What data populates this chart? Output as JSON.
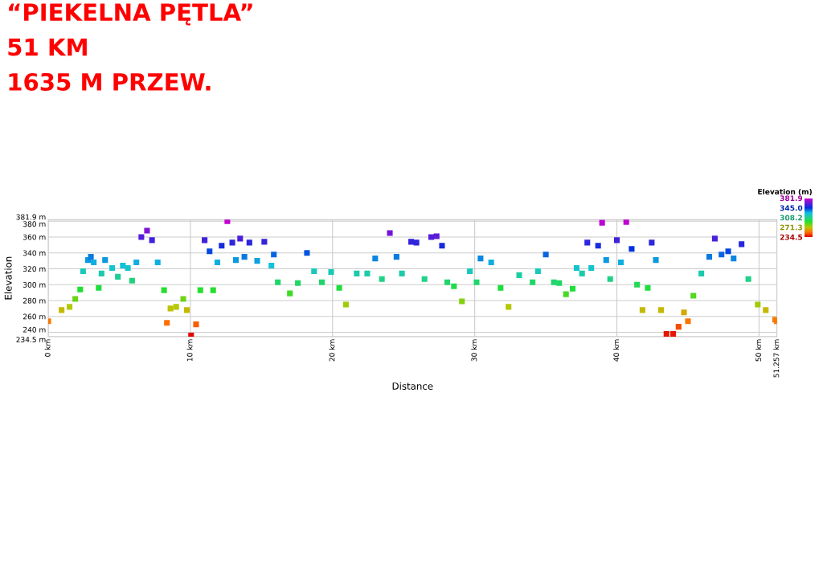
{
  "chart_data": {
    "type": "scatter",
    "title": "“PIEKELNA PĘTLA”",
    "subtitle": "51 KM",
    "annotations": [
      "1635 M PRZEW."
    ],
    "xlabel": "Distance",
    "ylabel": "Elevation",
    "clabel": "Elevation (m)",
    "clim": [
      234.5,
      381.9
    ],
    "cticks": [
      {
        "value": 381.9,
        "label": "381.9"
      },
      {
        "value": 345.0,
        "label": "345.0"
      },
      {
        "value": 308.2,
        "label": "308.2"
      },
      {
        "value": 271.3,
        "label": "271.3"
      },
      {
        "value": 234.5,
        "label": "234.5"
      }
    ],
    "xlim": [
      0,
      51.257
    ],
    "ylim": [
      234.5,
      381.9
    ],
    "xticks": [
      {
        "value": 0,
        "label": "0 km"
      },
      {
        "value": 10,
        "label": "10 km"
      },
      {
        "value": 20,
        "label": "20 km"
      },
      {
        "value": 30,
        "label": "30 km"
      },
      {
        "value": 40,
        "label": "40 km"
      },
      {
        "value": 50,
        "label": "50 km"
      },
      {
        "value": 51.257,
        "label": "51.257 km"
      }
    ],
    "yticks": [
      {
        "value": 234.5,
        "label": "234.5 m"
      },
      {
        "value": 240,
        "label": "240 m"
      },
      {
        "value": 260,
        "label": "260 m"
      },
      {
        "value": 280,
        "label": "280 m"
      },
      {
        "value": 300,
        "label": "300 m"
      },
      {
        "value": 320,
        "label": "320 m"
      },
      {
        "value": 340,
        "label": "340 m"
      },
      {
        "value": 360,
        "label": "360 m"
      },
      {
        "value": 380,
        "label": "380 m"
      },
      {
        "value": 381.9,
        "label": "381.9 m"
      }
    ],
    "grid": true,
    "marker": "square",
    "series": [
      {
        "x": [
          0,
          0.94,
          1.5,
          1.9,
          2.25,
          2.45,
          2.8,
          3.0,
          3.2,
          3.55,
          3.75,
          4.0,
          4.5,
          4.9,
          5.25,
          5.6,
          5.9,
          6.2,
          6.55,
          6.95,
          7.3,
          7.7,
          8.15,
          8.35,
          8.6,
          9.0,
          9.5,
          9.75,
          10.05,
          10.4,
          10.7,
          11.0,
          11.35,
          11.6,
          11.9,
          12.2,
          12.6,
          12.95,
          13.2,
          13.5,
          13.8,
          14.15,
          14.7,
          15.2,
          15.7,
          15.87,
          16.15,
          17.0,
          17.56,
          18.2,
          18.7,
          19.25,
          19.9,
          20.47,
          20.94,
          21.7,
          22.44,
          23.0,
          23.47,
          24.03,
          24.5,
          24.88,
          25.53,
          25.9,
          26.47,
          26.94,
          27.32,
          27.7,
          28.07,
          28.54,
          29.1,
          29.66,
          30.13,
          30.41,
          31.16,
          31.82,
          32.38,
          33.13,
          34.07,
          34.45,
          35.0,
          35.57,
          35.94,
          36.42,
          36.89,
          37.17,
          37.55,
          37.92,
          38.2,
          38.68,
          38.96,
          39.25,
          39.53,
          40.0,
          40.28,
          40.66,
          41.04,
          41.42,
          41.8,
          42.17,
          42.45,
          42.74,
          43.11,
          43.49,
          43.96,
          44.34,
          44.72,
          45.0,
          45.38,
          45.94,
          46.5,
          46.89,
          47.36,
          47.83,
          48.21,
          48.77,
          49.25,
          49.91,
          50.47,
          51.13,
          51.257
        ],
        "values": [
          254,
          268,
          272,
          282,
          294,
          317,
          331,
          335,
          328,
          296,
          314,
          331,
          321,
          310,
          324,
          321,
          305,
          328,
          360,
          368,
          356,
          328,
          293,
          252,
          270,
          272,
          282,
          268,
          236,
          250,
          293,
          356,
          342,
          293,
          328,
          349,
          380,
          353,
          331,
          358,
          335,
          353,
          330,
          354,
          324,
          338,
          303,
          289,
          302,
          340,
          317,
          303,
          316,
          296,
          275,
          314,
          314,
          333,
          307,
          365,
          335,
          314,
          354,
          353,
          307,
          360,
          361,
          349,
          303,
          298,
          279,
          317,
          303,
          333,
          328,
          296,
          272,
          312,
          303,
          317,
          338,
          303,
          302,
          288,
          295,
          321,
          314,
          353,
          321,
          349,
          378,
          331,
          307,
          356,
          328,
          379,
          345,
          300,
          268,
          296,
          353,
          331,
          268,
          238,
          238,
          247,
          265,
          254,
          286,
          314,
          335,
          358,
          338,
          342,
          333,
          351,
          307,
          275,
          268,
          256,
          254
        ],
        "cvalues": [
          254,
          268,
          272,
          282,
          294,
          317,
          331,
          335,
          328,
          296,
          314,
          331,
          321,
          310,
          324,
          321,
          305,
          328,
          360,
          368,
          356,
          328,
          293,
          252,
          270,
          272,
          282,
          268,
          236,
          250,
          293,
          356,
          342,
          293,
          328,
          349,
          380,
          353,
          331,
          358,
          335,
          353,
          330,
          354,
          324,
          338,
          303,
          289,
          302,
          340,
          317,
          303,
          316,
          296,
          275,
          314,
          314,
          333,
          307,
          365,
          335,
          314,
          354,
          353,
          307,
          360,
          361,
          349,
          303,
          298,
          279,
          317,
          303,
          333,
          328,
          296,
          272,
          312,
          303,
          317,
          338,
          303,
          302,
          288,
          295,
          321,
          314,
          353,
          321,
          349,
          378,
          331,
          307,
          356,
          328,
          379,
          345,
          300,
          268,
          296,
          353,
          331,
          268,
          238,
          238,
          247,
          265,
          254,
          286,
          314,
          335,
          358,
          338,
          342,
          333,
          351,
          307,
          275,
          268,
          256,
          254
        ]
      }
    ]
  }
}
